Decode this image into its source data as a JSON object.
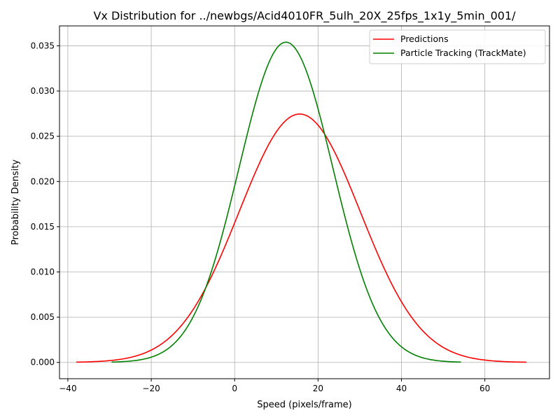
{
  "chart_data": {
    "type": "line",
    "title": "Vx Distribution for ../newbgs/Acid4010FR_5ulh_20X_25fps_1x1y_5min_001/",
    "xlabel": "Speed (pixels/frame)",
    "ylabel": "Probability Density",
    "xlim": [
      -42,
      75.5
    ],
    "ylim": [
      -0.0018,
      0.0372
    ],
    "xticks": [
      -40,
      -20,
      0,
      20,
      40,
      60
    ],
    "xtick_labels": [
      "−40",
      "−20",
      "0",
      "20",
      "40",
      "60"
    ],
    "yticks": [
      0,
      0.005,
      0.01,
      0.015,
      0.02,
      0.025,
      0.03,
      0.035
    ],
    "ytick_labels": [
      "0.000",
      "0.005",
      "0.010",
      "0.015",
      "0.020",
      "0.025",
      "0.030",
      "0.035"
    ],
    "grid": true,
    "legend_position": "upper-right",
    "series": [
      {
        "name": "Predictions",
        "color": "#ff0000",
        "curve": "normal",
        "mean": 15.6,
        "std": 14.53,
        "x_range": [
          -38,
          70
        ]
      },
      {
        "name": "Particle Tracking (TrackMate)",
        "color": "#008000",
        "curve": "normal",
        "mean": 12.3,
        "std": 11.27,
        "x_range": [
          -29.5,
          54.3
        ]
      }
    ]
  }
}
